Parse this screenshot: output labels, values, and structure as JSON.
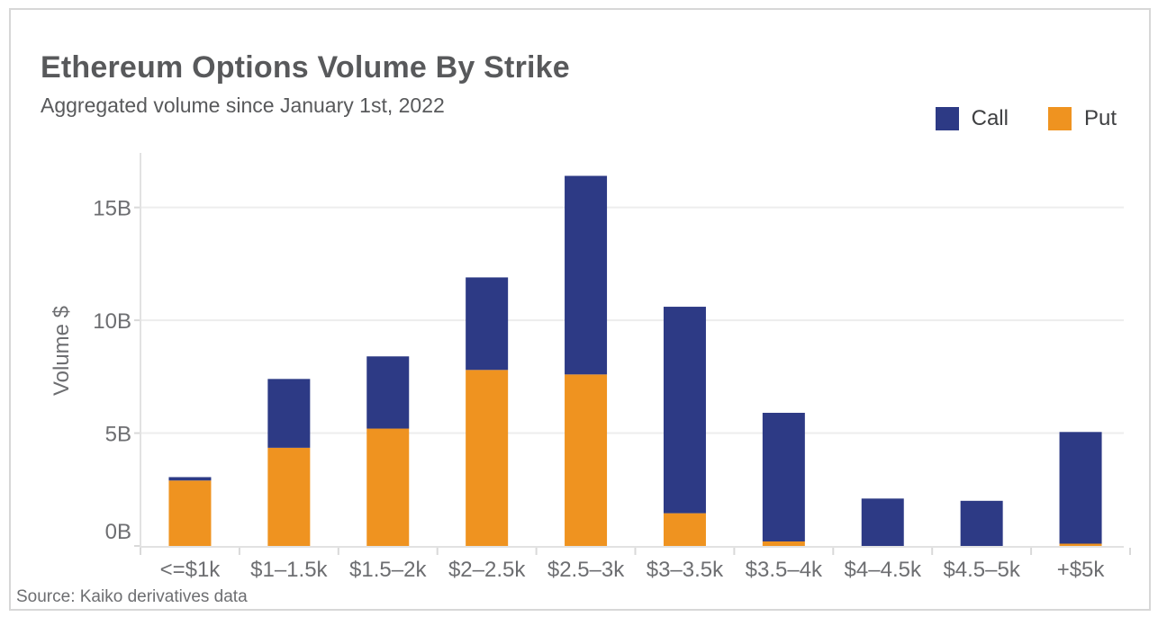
{
  "header": {
    "title": "Ethereum Options Volume By Strike",
    "subtitle": "Aggregated volume since January 1st, 2022"
  },
  "legend": [
    {
      "label": "Call",
      "color": "#2d3a85"
    },
    {
      "label": "Put",
      "color": "#ef9320"
    }
  ],
  "source": "Source: Kaiko derivatives data",
  "chart_data": {
    "type": "bar",
    "stacked": true,
    "title": "Ethereum Options Volume By Strike",
    "subtitle": "Aggregated volume since January 1st, 2022",
    "xlabel": "",
    "ylabel": "Volume $",
    "categories": [
      "<=$1k",
      "$1–1.5k",
      "$1.5–2k",
      "$2–2.5k",
      "$2.5–3k",
      "$3–3.5k",
      "$3.5–4k",
      "$4–4.5k",
      "$4.5–5k",
      "+$5k"
    ],
    "series": [
      {
        "name": "Put",
        "color": "#ef9320",
        "values": [
          2.9,
          4.35,
          5.2,
          7.8,
          7.6,
          1.45,
          0.2,
          0,
          0,
          0.1
        ]
      },
      {
        "name": "Call",
        "color": "#2d3a85",
        "values": [
          0.15,
          3.05,
          3.2,
          4.1,
          8.8,
          9.15,
          5.7,
          2.1,
          2.0,
          4.95
        ]
      }
    ],
    "totals": [
      3.05,
      7.4,
      8.4,
      11.9,
      16.4,
      10.6,
      5.9,
      2.1,
      2.0,
      5.05
    ],
    "y_ticks": [
      {
        "value": 0,
        "label": "0B"
      },
      {
        "value": 5,
        "label": "5B"
      },
      {
        "value": 10,
        "label": "10B"
      },
      {
        "value": 15,
        "label": "15B"
      }
    ],
    "ylim": [
      0,
      17.4
    ],
    "unit": "billions USD",
    "grid": "horizontal",
    "legend_position": "top-right",
    "source": "Source: Kaiko derivatives data"
  }
}
